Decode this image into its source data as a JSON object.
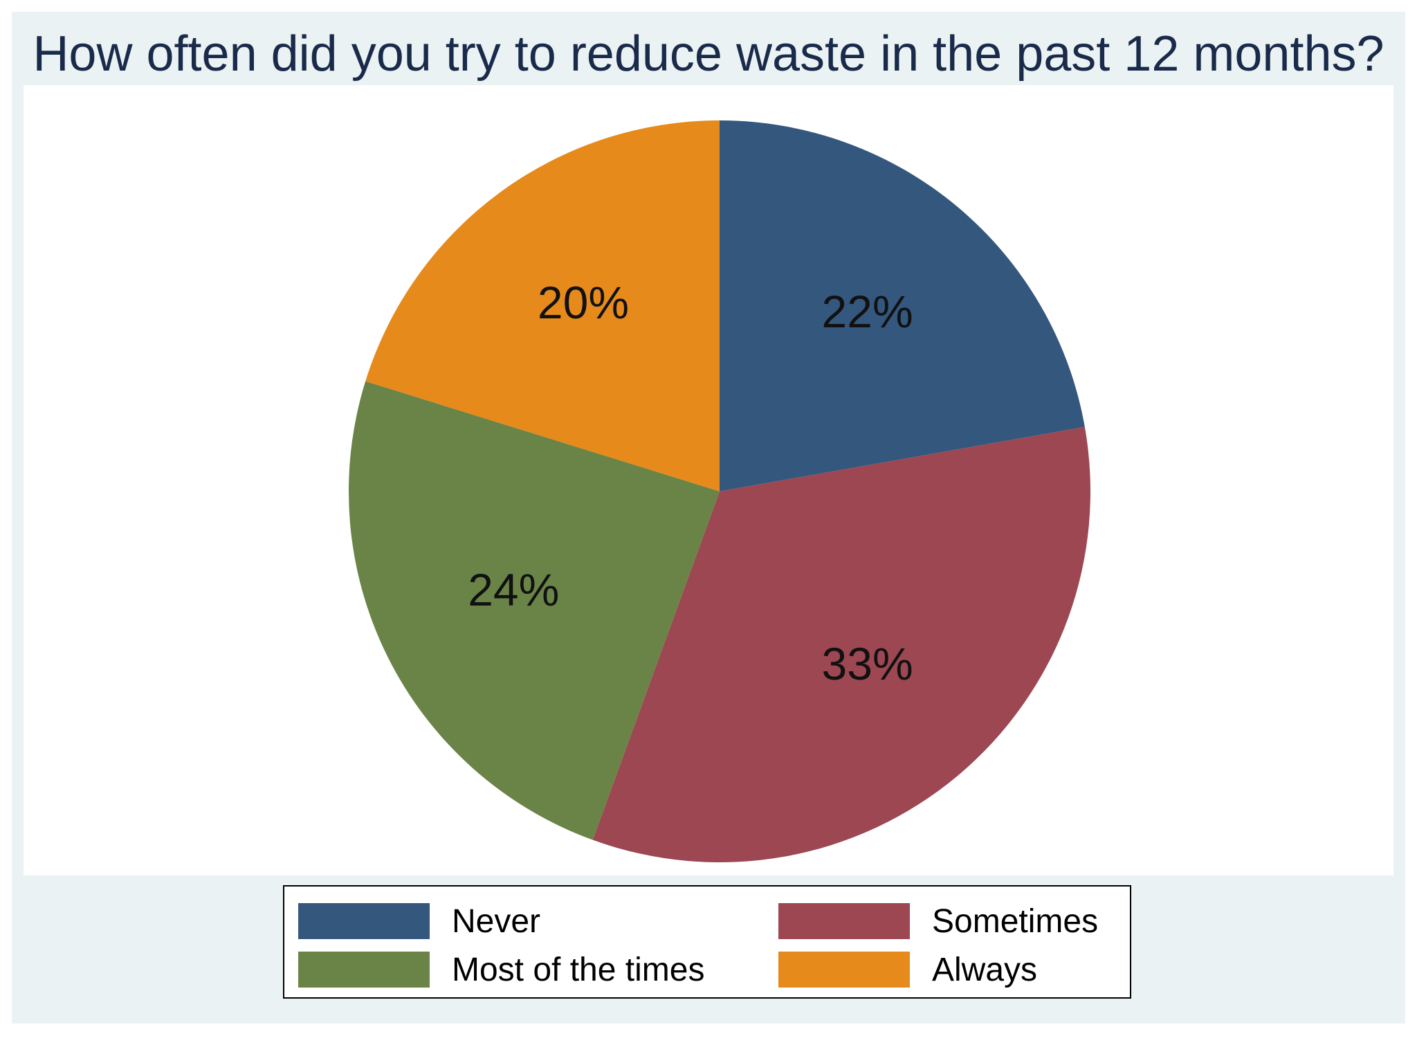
{
  "chart_data": {
    "type": "pie",
    "title": "How often did you try to reduce waste in the past 12 months?",
    "categories": [
      "Never",
      "Sometimes",
      "Most of the times",
      "Always"
    ],
    "values": [
      22,
      33,
      24,
      20
    ],
    "labels": [
      "22%",
      "33%",
      "24%",
      "20%"
    ],
    "colors": [
      "#34577e",
      "#9c4752",
      "#6a8447",
      "#e68a1c"
    ],
    "start_angle_deg": 0,
    "direction": "clockwise",
    "legend": {
      "position": "bottom",
      "columns": 2,
      "order": [
        "Never",
        "Sometimes",
        "Most of the times",
        "Always"
      ]
    }
  }
}
